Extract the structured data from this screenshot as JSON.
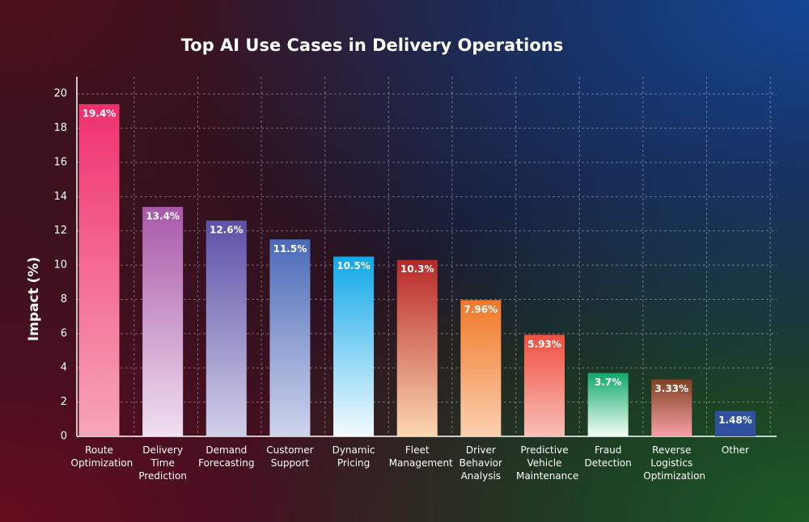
{
  "chart_data": {
    "type": "bar",
    "title": "Top AI Use Cases in Delivery Operations",
    "y_label": "Impact (%)",
    "categories": [
      "Route Optimization",
      "Delivery Time Prediction",
      "Demand Forecasting",
      "Customer Support",
      "Dynamic Pricing",
      "Fleet Management",
      "Driver Behavior Analysis",
      "Predictive Vehicle Maintenance",
      "Fraud Detection",
      "Reverse Logistics Optimization",
      "Other"
    ],
    "values": [
      19.4,
      13.4,
      12.6,
      11.5,
      10.5,
      10.3,
      7.96,
      5.93,
      3.7,
      3.33,
      1.48
    ],
    "value_labels": [
      "19.4%",
      "13.4%",
      "12.6%",
      "11.5%",
      "10.5%",
      "10.3%",
      "7.96%",
      "5.93%",
      "3.7%",
      "3.33%",
      "1.48%"
    ],
    "colors": [
      "#f0306e",
      "#a858a8",
      "#5a50a8",
      "#4a6ab8",
      "#10a8e8",
      "#b82828",
      "#f07828",
      "#f05040",
      "#10a868",
      "#804020",
      "#3050a0"
    ],
    "colors_end": [
      "#f7a6b8",
      "#f0e0f0",
      "#d0d0e8",
      "#d0d4ec",
      "#f4fbff",
      "#fcd8b0",
      "#fcd0b0",
      "#f8c0b8",
      "#f4fff8",
      "#f8a0a8",
      "#3050a0"
    ],
    "ylim": [
      0,
      21
    ],
    "yticks": [
      0,
      2,
      4,
      6,
      8,
      10,
      12,
      14,
      16,
      18,
      20
    ],
    "grid": true
  }
}
